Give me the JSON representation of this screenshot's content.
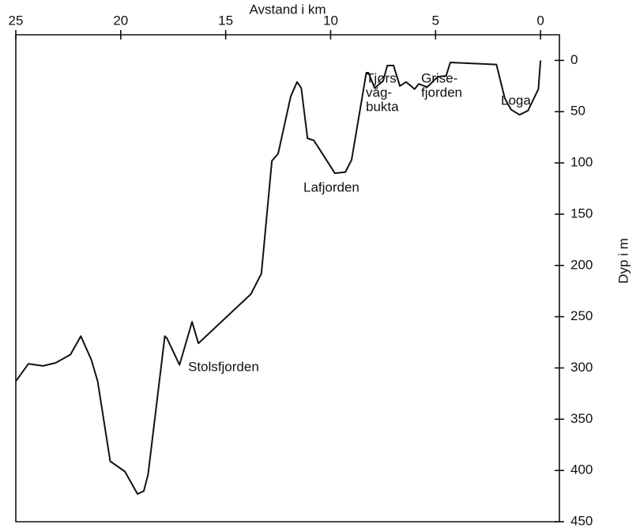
{
  "chart_data": {
    "type": "line",
    "xlabel": "Avstand i km",
    "ylabel": "Dyp i m",
    "xlim": [
      25,
      -0.9
    ],
    "xticks": [
      25,
      20,
      15,
      10,
      5,
      0
    ],
    "ylim": [
      -25,
      450
    ],
    "yticks": [
      0,
      50,
      100,
      150,
      200,
      250,
      300,
      350,
      400,
      450
    ],
    "y_inverted": true,
    "color": "#111111",
    "x": [
      25,
      24.4,
      23.7,
      23.1,
      22.4,
      21.9,
      21.4,
      21.1,
      20.5,
      19.8,
      19.2,
      18.9,
      18.7,
      17.9,
      17.8,
      17.2,
      16.6,
      16.3,
      13.8,
      13.3,
      12.8,
      12.5,
      11.9,
      11.6,
      11.4,
      11.1,
      10.8,
      9.8,
      9.3,
      9.0,
      8.3,
      8.2,
      7.9,
      7.5,
      7.3,
      7.0,
      6.7,
      6.4,
      6.0,
      5.8,
      5.4,
      4.9,
      4.5,
      4.3,
      2.1,
      1.7,
      1.4,
      1.0,
      0.6,
      0.1,
      0.0
    ],
    "values": [
      313,
      296,
      298,
      295,
      287,
      269,
      292,
      313,
      391,
      401,
      423,
      420,
      404,
      269,
      271,
      297,
      255,
      276,
      228,
      208,
      98,
      91,
      35,
      21,
      27,
      76,
      78,
      110,
      109,
      97,
      12,
      12,
      27,
      20,
      5,
      5,
      25,
      21,
      28,
      23,
      26,
      16,
      15,
      2,
      4,
      37,
      48,
      53,
      49,
      28,
      0
    ],
    "annotations": [
      {
        "text": [
          "Stolsfjorden"
        ]
      },
      {
        "text": [
          "Lafjorden"
        ]
      },
      {
        "text": [
          "Tjørs",
          "våg-",
          "bukta"
        ]
      },
      {
        "text": [
          "Grise-",
          "fjorden"
        ]
      },
      {
        "text": [
          "Loga"
        ]
      }
    ]
  }
}
